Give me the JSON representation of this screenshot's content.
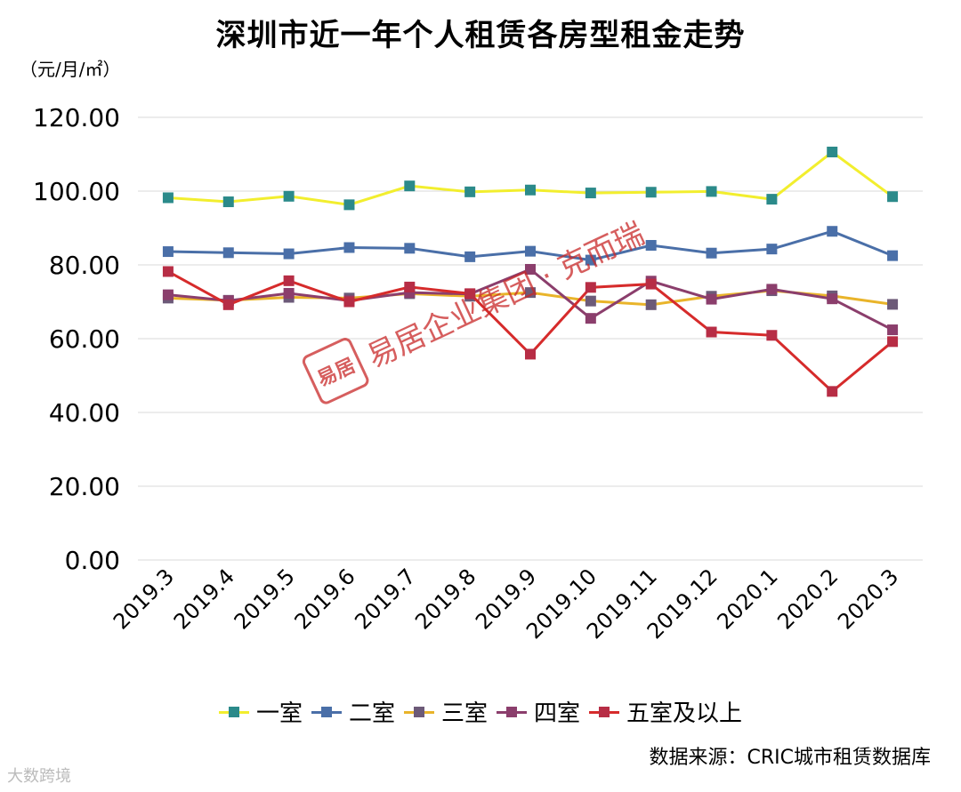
{
  "title": "深圳市近一年个人租赁各房型租金走势",
  "unit_label": "（元/月/㎡）",
  "source": "数据来源：CRIC城市租赁数据库",
  "watermark": {
    "seal": "易居",
    "text": "易居企业集团 · 克而瑞"
  },
  "logo": "大数跨境",
  "chart_data": {
    "type": "line",
    "title": "深圳市近一年个人租赁各房型租金走势",
    "ylabel": "（元/月/㎡）",
    "xlabel": "",
    "ylim": [
      0,
      120
    ],
    "yticks": [
      "0.00",
      "20.00",
      "40.00",
      "60.00",
      "80.00",
      "100.00",
      "120.00"
    ],
    "grid": true,
    "legend": "bottom",
    "categories": [
      "2019.3",
      "2019.4",
      "2019.5",
      "2019.6",
      "2019.7",
      "2019.8",
      "2019.9",
      "2019.10",
      "2019.11",
      "2019.12",
      "2020.1",
      "2020.2",
      "2020.3"
    ],
    "series": [
      {
        "name": "一室",
        "line_color": "#F2EE2E",
        "marker_color": "#2B8A8A",
        "values": [
          98.2,
          97.1,
          98.6,
          96.3,
          101.4,
          99.8,
          100.3,
          99.5,
          99.7,
          99.9,
          97.8,
          110.6,
          98.5
        ]
      },
      {
        "name": "二室",
        "line_color": "#4A6FA8",
        "marker_color": "#4A6FA8",
        "values": [
          83.6,
          83.3,
          83.0,
          84.7,
          84.5,
          82.2,
          83.7,
          81.3,
          85.3,
          83.2,
          84.3,
          89.1,
          82.5
        ]
      },
      {
        "name": "三室",
        "line_color": "#E9B42A",
        "marker_color": "#6C5A78",
        "values": [
          71.0,
          70.4,
          71.2,
          71.0,
          72.2,
          71.5,
          72.5,
          70.2,
          69.2,
          71.5,
          73.0,
          71.6,
          69.3
        ]
      },
      {
        "name": "四室",
        "line_color": "#8B3E6C",
        "marker_color": "#8B3E6C",
        "values": [
          71.9,
          70.3,
          72.3,
          70.3,
          72.5,
          72.1,
          78.8,
          65.5,
          75.6,
          70.7,
          73.4,
          70.8,
          62.4
        ]
      },
      {
        "name": "五室及以上",
        "line_color": "#D62B2B",
        "marker_color": "#B72D45",
        "values": [
          78.2,
          69.2,
          75.7,
          70.0,
          74.0,
          72.2,
          55.8,
          73.9,
          74.8,
          61.8,
          60.9,
          45.7,
          59.2
        ]
      }
    ]
  }
}
